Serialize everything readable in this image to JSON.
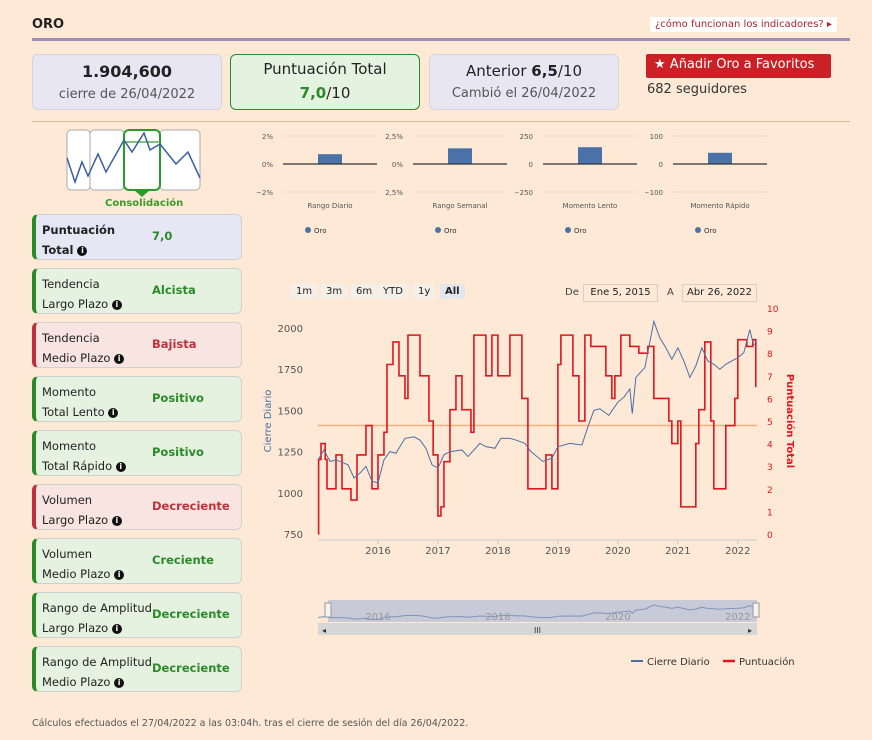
{
  "header": {
    "title": "ORO",
    "help_link": "¿cómo funcionan los indicadores?",
    "help_arrow": "▸"
  },
  "cards": {
    "price": "1.904,600",
    "price_sub": "cierre de 26/04/2022",
    "score_title": "Puntuación Total",
    "score_value": "7,0",
    "score_den": "/10",
    "prev_label": "Anterior ",
    "prev_value": "6,5",
    "prev_den": "/10",
    "prev_sub": "Cambió el 26/04/2022"
  },
  "favorites": {
    "label": "Añadir Oro a Favoritos",
    "followers": "682 seguidores"
  },
  "phase": "Consolidación",
  "indicators": [
    {
      "name1": "Puntuación",
      "name2": "Total",
      "value": "7,0",
      "kind": "blue"
    },
    {
      "name1": "Tendencia",
      "name2": "Largo Plazo",
      "value": "Alcista",
      "kind": "green"
    },
    {
      "name1": "Tendencia",
      "name2": "Medio Plazo",
      "value": "Bajista",
      "kind": "red"
    },
    {
      "name1": "Momento",
      "name2": "Total Lento",
      "value": "Positivo",
      "kind": "green"
    },
    {
      "name1": "Momento",
      "name2": "Total Rápido",
      "value": "Positivo",
      "kind": "green"
    },
    {
      "name1": "Volumen",
      "name2": "Largo Plazo",
      "value": "Decreciente",
      "kind": "red"
    },
    {
      "name1": "Volumen",
      "name2": "Medio Plazo",
      "value": "Creciente",
      "kind": "green"
    },
    {
      "name1": "Rango de Amplitud",
      "name2": "Largo Plazo",
      "value": "Decreciente",
      "kind": "green"
    },
    {
      "name1": "Rango de Amplitud",
      "name2": "Medio Plazo",
      "value": "Decreciente",
      "kind": "green"
    }
  ],
  "range": {
    "buttons": [
      "1m",
      "3m",
      "6m",
      "YTD",
      "1y",
      "All"
    ],
    "selected": "All",
    "from_label": "De",
    "from": "Ene 5, 2015",
    "to_label": "A",
    "to": "Abr 26, 2022"
  },
  "footer": "Cálculos efectuados el 27/04/2022 a las 03:04h. tras el cierre de sesión del día 26/04/2022.",
  "colors": {
    "close": "#4a6fa5",
    "score": "#e0151f",
    "threshold": "#f0b080",
    "bar": "#4a72a8"
  },
  "chart_data": [
    {
      "type": "bar",
      "title": "Rango Diario",
      "ticks": [
        "2%",
        "0%",
        "−2%"
      ],
      "ylim": [
        -2,
        2
      ],
      "values": [
        0.7
      ],
      "legend": "Oro"
    },
    {
      "type": "bar",
      "title": "Rango Semanal",
      "ticks": [
        "2,5%",
        "0%",
        "−2,5%"
      ],
      "ylim": [
        -2.5,
        2.5
      ],
      "values": [
        1.4
      ],
      "legend": "Oro"
    },
    {
      "type": "bar",
      "title": "Momento Lento",
      "ticks": [
        "250",
        "0",
        "−250"
      ],
      "ylim": [
        -250,
        250
      ],
      "values": [
        150
      ],
      "legend": "Oro"
    },
    {
      "type": "bar",
      "title": "Momento Rápido",
      "ticks": [
        "100",
        "0",
        "−100"
      ],
      "ylim": [
        -100,
        100
      ],
      "values": [
        40
      ],
      "legend": "Oro"
    },
    {
      "type": "line",
      "ylabel": "Cierre Diario",
      "y2label": "Puntuación Total",
      "ylim": [
        700,
        2100
      ],
      "y2lim": [
        0,
        10
      ],
      "xlim": [
        2015.0,
        2022.32
      ],
      "yticks": [
        750,
        1000,
        1250,
        1500,
        1750,
        2000
      ],
      "y2ticks": [
        0,
        1,
        2,
        3,
        4,
        5,
        6,
        7,
        8,
        9,
        10
      ],
      "xticks": [
        "2016",
        "2017",
        "2018",
        "2019",
        "2020",
        "2021",
        "2022"
      ],
      "threshold": 4.8,
      "series": [
        {
          "name": "Cierre Diario",
          "points": [
            [
              2015.0,
              1200
            ],
            [
              2015.1,
              1260
            ],
            [
              2015.2,
              1190
            ],
            [
              2015.3,
              1200
            ],
            [
              2015.5,
              1170
            ],
            [
              2015.6,
              1090
            ],
            [
              2015.7,
              1120
            ],
            [
              2015.8,
              1160
            ],
            [
              2015.9,
              1070
            ],
            [
              2016.0,
              1060
            ],
            [
              2016.1,
              1200
            ],
            [
              2016.2,
              1250
            ],
            [
              2016.3,
              1240
            ],
            [
              2016.45,
              1330
            ],
            [
              2016.6,
              1340
            ],
            [
              2016.7,
              1320
            ],
            [
              2016.8,
              1270
            ],
            [
              2016.9,
              1170
            ],
            [
              2017.0,
              1150
            ],
            [
              2017.1,
              1230
            ],
            [
              2017.2,
              1250
            ],
            [
              2017.4,
              1260
            ],
            [
              2017.5,
              1220
            ],
            [
              2017.7,
              1300
            ],
            [
              2017.8,
              1280
            ],
            [
              2017.95,
              1270
            ],
            [
              2018.05,
              1330
            ],
            [
              2018.2,
              1330
            ],
            [
              2018.3,
              1320
            ],
            [
              2018.45,
              1300
            ],
            [
              2018.55,
              1250
            ],
            [
              2018.65,
              1220
            ],
            [
              2018.75,
              1190
            ],
            [
              2018.9,
              1210
            ],
            [
              2019.0,
              1280
            ],
            [
              2019.2,
              1300
            ],
            [
              2019.4,
              1290
            ],
            [
              2019.5,
              1400
            ],
            [
              2019.6,
              1500
            ],
            [
              2019.7,
              1510
            ],
            [
              2019.85,
              1470
            ],
            [
              2020.0,
              1550
            ],
            [
              2020.1,
              1580
            ],
            [
              2020.2,
              1630
            ],
            [
              2020.24,
              1480
            ],
            [
              2020.3,
              1700
            ],
            [
              2020.45,
              1760
            ],
            [
              2020.6,
              2040
            ],
            [
              2020.7,
              1940
            ],
            [
              2020.8,
              1880
            ],
            [
              2020.9,
              1810
            ],
            [
              2021.0,
              1880
            ],
            [
              2021.1,
              1800
            ],
            [
              2021.2,
              1700
            ],
            [
              2021.3,
              1770
            ],
            [
              2021.4,
              1880
            ],
            [
              2021.5,
              1800
            ],
            [
              2021.6,
              1780
            ],
            [
              2021.7,
              1750
            ],
            [
              2021.8,
              1780
            ],
            [
              2021.9,
              1800
            ],
            [
              2022.0,
              1820
            ],
            [
              2022.1,
              1850
            ],
            [
              2022.2,
              1990
            ],
            [
              2022.26,
              1900
            ],
            [
              2022.32,
              1905
            ]
          ]
        },
        {
          "name": "Puntuación",
          "points": [
            [
              2015.0,
              0
            ],
            [
              2015.01,
              3.3
            ],
            [
              2015.05,
              4.0
            ],
            [
              2015.12,
              3.3
            ],
            [
              2015.15,
              2
            ],
            [
              2015.3,
              3.5
            ],
            [
              2015.4,
              2
            ],
            [
              2015.55,
              1.5
            ],
            [
              2015.65,
              3.5
            ],
            [
              2015.8,
              4.8
            ],
            [
              2015.9,
              2
            ],
            [
              2016.0,
              3.5
            ],
            [
              2016.1,
              4.5
            ],
            [
              2016.15,
              7.5
            ],
            [
              2016.25,
              8.5
            ],
            [
              2016.35,
              7
            ],
            [
              2016.45,
              6
            ],
            [
              2016.5,
              8.8
            ],
            [
              2016.7,
              7
            ],
            [
              2016.85,
              5
            ],
            [
              2016.92,
              3.5
            ],
            [
              2017.0,
              0.8
            ],
            [
              2017.05,
              1.2
            ],
            [
              2017.1,
              3.2
            ],
            [
              2017.2,
              5.5
            ],
            [
              2017.3,
              7
            ],
            [
              2017.4,
              5.5
            ],
            [
              2017.55,
              4.5
            ],
            [
              2017.6,
              8.8
            ],
            [
              2017.8,
              7
            ],
            [
              2017.9,
              8.8
            ],
            [
              2018.0,
              7
            ],
            [
              2018.2,
              8.8
            ],
            [
              2018.4,
              6
            ],
            [
              2018.5,
              2
            ],
            [
              2018.8,
              3.5
            ],
            [
              2018.9,
              2
            ],
            [
              2019.0,
              7.5
            ],
            [
              2019.05,
              8.8
            ],
            [
              2019.25,
              7
            ],
            [
              2019.35,
              5
            ],
            [
              2019.45,
              8.8
            ],
            [
              2019.55,
              8.3
            ],
            [
              2019.8,
              7
            ],
            [
              2019.9,
              6
            ],
            [
              2019.95,
              7
            ],
            [
              2020.05,
              8.8
            ],
            [
              2020.2,
              8.3
            ],
            [
              2020.35,
              8
            ],
            [
              2020.5,
              8.3
            ],
            [
              2020.6,
              6
            ],
            [
              2020.85,
              5
            ],
            [
              2020.9,
              4
            ],
            [
              2021.0,
              5
            ],
            [
              2021.05,
              1.2
            ],
            [
              2021.2,
              1.2
            ],
            [
              2021.3,
              4.0
            ],
            [
              2021.35,
              5.5
            ],
            [
              2021.45,
              8.5
            ],
            [
              2021.55,
              5
            ],
            [
              2021.6,
              2
            ],
            [
              2021.75,
              2
            ],
            [
              2021.8,
              4.8
            ],
            [
              2021.95,
              6
            ],
            [
              2022.0,
              8.6
            ],
            [
              2022.15,
              8.3
            ],
            [
              2022.25,
              8.6
            ],
            [
              2022.3,
              6.5
            ]
          ]
        }
      ],
      "navigator_ticks": [
        "2016",
        "2018",
        "2020",
        "2022"
      ],
      "legend": [
        "Cierre Diario",
        "Puntuación"
      ]
    }
  ]
}
